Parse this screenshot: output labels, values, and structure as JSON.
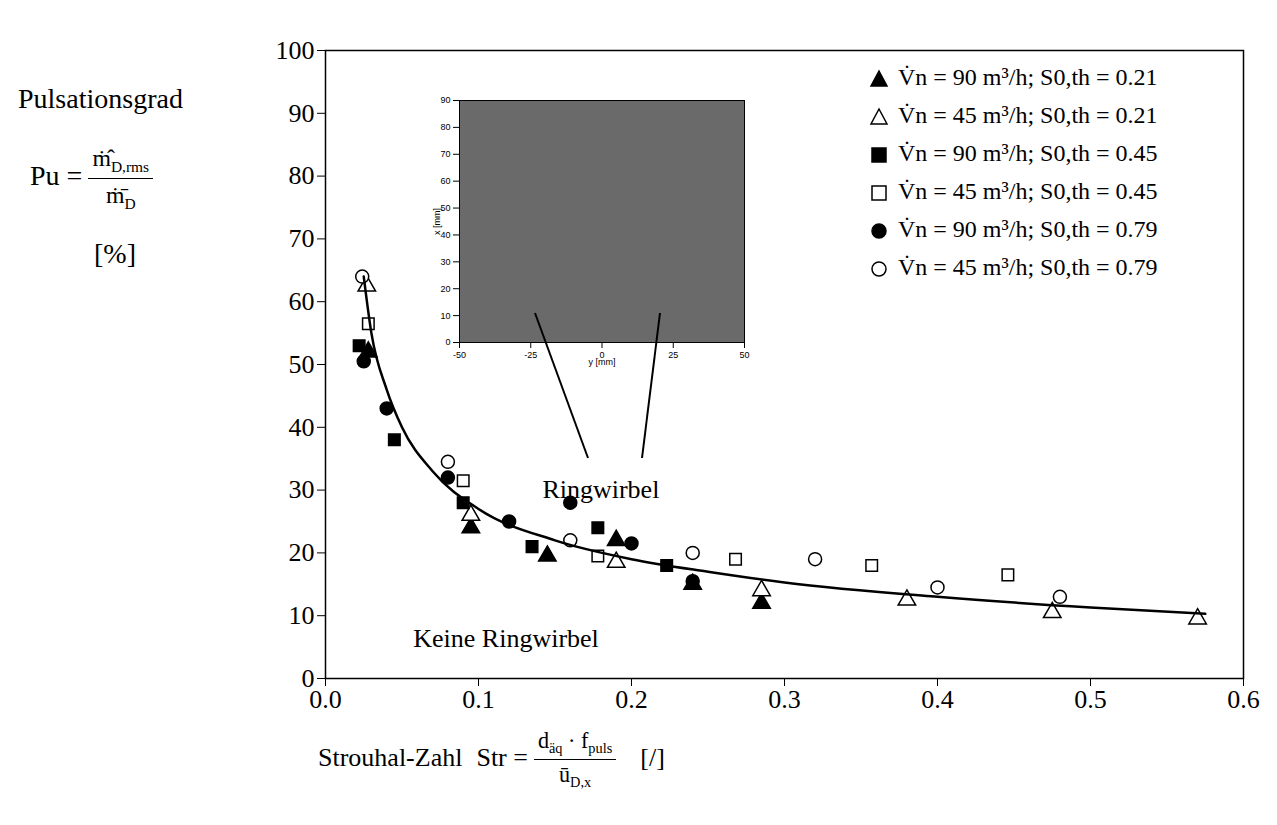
{
  "chart_data": [
    {
      "type": "scatter",
      "ylabel": {
        "title": "Pulsationsgrad",
        "formula": {
          "lhs": "Pu =",
          "numerator": [
            {
              "t": "ṁ̂",
              "sub": "D,rms"
            }
          ],
          "denominator": [
            {
              "t": "ṁ̄",
              "sub": "D"
            }
          ]
        },
        "unit": "[%]"
      },
      "xlabel": {
        "title": "Strouhal-Zahl",
        "formula": {
          "lhs": "Str =",
          "numerator": [
            {
              "t": "d",
              "sub": "äq"
            },
            {
              "t": " · f",
              "sub": "puls"
            }
          ],
          "denominator": [
            {
              "t": "ū",
              "sub": "D,x"
            }
          ]
        },
        "unit": "[/]"
      },
      "xlim": [
        0,
        0.6
      ],
      "xticks": [
        {
          "value": 0,
          "label": "0.0"
        },
        0.1,
        0.2,
        0.3,
        0.4,
        0.5,
        0.6
      ],
      "ylim": [
        0,
        100
      ],
      "yticks": [
        0,
        10,
        20,
        30,
        40,
        50,
        60,
        70,
        80,
        90,
        100
      ],
      "legend": "top-right",
      "annotations": [
        {
          "text": "Ringwirbel",
          "x": 0.18,
          "y": 30
        },
        {
          "text": "Keine Ringwirbel",
          "x": 0.118,
          "y": 6.4
        }
      ],
      "series": [
        {
          "name": "V̇n = 90 m³/h; S0,th = 0.21",
          "marker": "filled-triangle",
          "color": "#000000",
          "x": [
            0.028,
            0.095,
            0.145,
            0.19,
            0.24,
            0.285
          ],
          "values": [
            52,
            24,
            19.5,
            22,
            15,
            12
          ]
        },
        {
          "name": "V̇n = 45 m³/h; S0,th = 0.21",
          "marker": "open-triangle",
          "color": "#000000",
          "x": [
            0.027,
            0.095,
            0.19,
            0.285,
            0.38,
            0.475,
            0.57
          ],
          "values": [
            62.5,
            26,
            18.5,
            14,
            12.5,
            10.5,
            9.5
          ]
        },
        {
          "name": "V̇n = 90 m³/h; S0,th = 0.45",
          "marker": "filled-square",
          "color": "#000000",
          "x": [
            0.022,
            0.045,
            0.09,
            0.135,
            0.178,
            0.223
          ],
          "values": [
            53,
            38,
            28,
            21,
            24,
            18
          ]
        },
        {
          "name": "V̇n = 45 m³/h; S0,th = 0.45",
          "marker": "open-square",
          "color": "#000000",
          "x": [
            0.028,
            0.09,
            0.178,
            0.268,
            0.357,
            0.446
          ],
          "values": [
            56.5,
            31.5,
            19.5,
            19,
            18,
            16.5
          ]
        },
        {
          "name": "V̇n = 90 m³/h; S0,th = 0.79",
          "marker": "filled-circle",
          "color": "#000000",
          "x": [
            0.025,
            0.04,
            0.08,
            0.12,
            0.16,
            0.2,
            0.24
          ],
          "values": [
            50.5,
            43,
            32,
            25,
            28,
            21.5,
            15.5
          ]
        },
        {
          "name": "V̇n = 45 m³/h; S0,th = 0.79",
          "marker": "open-circle",
          "color": "#000000",
          "x": [
            0.024,
            0.08,
            0.16,
            0.24,
            0.32,
            0.4,
            0.48
          ],
          "values": [
            64,
            34.5,
            22,
            20,
            19,
            14.5,
            13
          ]
        },
        {
          "type": "line",
          "color": "#000000",
          "line_style": "solid",
          "x": [
            0.025,
            0.03,
            0.04,
            0.05,
            0.07,
            0.1,
            0.15,
            0.2,
            0.25,
            0.3,
            0.4,
            0.5,
            0.575
          ],
          "values": [
            64,
            55,
            46,
            40,
            33,
            27,
            22,
            19,
            17,
            15.3,
            13,
            11.3,
            10.3
          ]
        }
      ]
    },
    {
      "type": "image",
      "xlabel": "y [mm]",
      "ylabel": "x [mm]",
      "xlim": [
        -50,
        50
      ],
      "xticks": [
        -50,
        -25,
        0,
        25,
        50
      ],
      "ylim": [
        0,
        90
      ],
      "yticks": [
        0,
        10,
        20,
        30,
        40,
        50,
        60,
        70,
        80,
        90
      ]
    }
  ]
}
